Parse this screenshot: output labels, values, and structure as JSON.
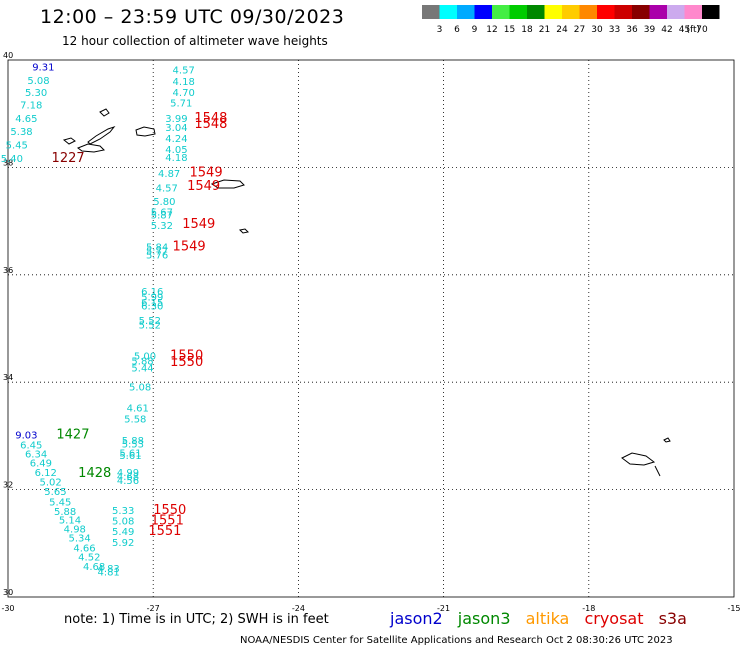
{
  "header": {
    "title": "12:00 – 23:59 UTC 09/30/2023",
    "subtitle": "12 hour collection of altimeter wave heights"
  },
  "legend": {
    "unit": "(ft)",
    "bins": [
      {
        "label": "3",
        "color": "#777777"
      },
      {
        "label": "6",
        "color": "#00ffff"
      },
      {
        "label": "9",
        "color": "#00aaff"
      },
      {
        "label": "12",
        "color": "#0000ff"
      },
      {
        "label": "15",
        "color": "#44ee44"
      },
      {
        "label": "18",
        "color": "#00cc00"
      },
      {
        "label": "21",
        "color": "#008800"
      },
      {
        "label": "24",
        "color": "#ffff00"
      },
      {
        "label": "27",
        "color": "#ffcc00"
      },
      {
        "label": "30",
        "color": "#ff8800"
      },
      {
        "label": "33",
        "color": "#ff0000"
      },
      {
        "label": "36",
        "color": "#cc0000"
      },
      {
        "label": "39",
        "color": "#880000"
      },
      {
        "label": "42",
        "color": "#aa00aa"
      },
      {
        "label": "45",
        "color": "#ccaaee"
      },
      {
        "label": "70",
        "color": "#ff88cc"
      },
      {
        "label": "",
        "color": "#000000"
      }
    ]
  },
  "map": {
    "lat_ticks": [
      "40",
      "38",
      "36",
      "34",
      "32",
      "30"
    ],
    "lon_ticks": [
      "-30",
      "-27",
      "-24",
      "-21",
      "-18",
      "-15"
    ],
    "lon_range": [
      -30,
      -15
    ],
    "lat_range": [
      30,
      40
    ],
    "colors": {
      "cyan": "#11cccc",
      "blue": "#0000cc",
      "red": "#dd0000",
      "darkred": "#880000",
      "green": "#008800"
    },
    "wave_labels": [
      {
        "t": "9.31",
        "lon": -29.5,
        "lat": 39.8,
        "c": "blue"
      },
      {
        "t": "5.08",
        "lon": -29.6,
        "lat": 39.55,
        "c": "cyan"
      },
      {
        "t": "5.30",
        "lon": -29.65,
        "lat": 39.33,
        "c": "cyan"
      },
      {
        "t": "7.18",
        "lon": -29.75,
        "lat": 39.1,
        "c": "cyan"
      },
      {
        "t": "4.65",
        "lon": -29.85,
        "lat": 38.85,
        "c": "cyan"
      },
      {
        "t": "5.38",
        "lon": -29.95,
        "lat": 38.6,
        "c": "cyan"
      },
      {
        "t": "5.45",
        "lon": -30.05,
        "lat": 38.35,
        "c": "cyan"
      },
      {
        "t": "5.40",
        "lon": -30.15,
        "lat": 38.1,
        "c": "cyan"
      },
      {
        "t": "4.57",
        "lon": -26.6,
        "lat": 39.75,
        "c": "cyan"
      },
      {
        "t": "4.18",
        "lon": -26.6,
        "lat": 39.53,
        "c": "cyan"
      },
      {
        "t": "4.70",
        "lon": -26.6,
        "lat": 39.33,
        "c": "cyan"
      },
      {
        "t": "5.71",
        "lon": -26.65,
        "lat": 39.13,
        "c": "cyan"
      },
      {
        "t": "3.99",
        "lon": -26.75,
        "lat": 38.85,
        "c": "cyan"
      },
      {
        "t": "3.04",
        "lon": -26.75,
        "lat": 38.68,
        "c": "cyan"
      },
      {
        "t": "4.24",
        "lon": -26.75,
        "lat": 38.47,
        "c": "cyan"
      },
      {
        "t": "4.05",
        "lon": -26.75,
        "lat": 38.27,
        "c": "cyan"
      },
      {
        "t": "4.18",
        "lon": -26.75,
        "lat": 38.12,
        "c": "cyan"
      },
      {
        "t": "4.87",
        "lon": -26.9,
        "lat": 37.82,
        "c": "cyan"
      },
      {
        "t": "4.57",
        "lon": -26.95,
        "lat": 37.55,
        "c": "cyan"
      },
      {
        "t": "5.80",
        "lon": -27.0,
        "lat": 37.3,
        "c": "cyan"
      },
      {
        "t": "5.67",
        "lon": -27.05,
        "lat": 37.1,
        "c": "cyan"
      },
      {
        "t": "5.87",
        "lon": -27.05,
        "lat": 37.05,
        "c": "cyan"
      },
      {
        "t": "5.32",
        "lon": -27.05,
        "lat": 36.85,
        "c": "cyan"
      },
      {
        "t": "5.84",
        "lon": -27.15,
        "lat": 36.45,
        "c": "cyan"
      },
      {
        "t": "5.77",
        "lon": -27.15,
        "lat": 36.38,
        "c": "cyan"
      },
      {
        "t": "5.76",
        "lon": -27.15,
        "lat": 36.3,
        "c": "cyan"
      },
      {
        "t": "6.16",
        "lon": -27.25,
        "lat": 35.62,
        "c": "cyan"
      },
      {
        "t": "5.99",
        "lon": -27.25,
        "lat": 35.52,
        "c": "cyan"
      },
      {
        "t": "6.15",
        "lon": -27.25,
        "lat": 35.42,
        "c": "cyan"
      },
      {
        "t": "6.30",
        "lon": -27.25,
        "lat": 35.35,
        "c": "cyan"
      },
      {
        "t": "5.52",
        "lon": -27.3,
        "lat": 35.08,
        "c": "cyan"
      },
      {
        "t": "5.52",
        "lon": -27.3,
        "lat": 35.0,
        "c": "cyan"
      },
      {
        "t": "5.00",
        "lon": -27.4,
        "lat": 34.42,
        "c": "cyan"
      },
      {
        "t": "5.88",
        "lon": -27.45,
        "lat": 34.33,
        "c": "cyan"
      },
      {
        "t": "5.44",
        "lon": -27.45,
        "lat": 34.2,
        "c": "cyan"
      },
      {
        "t": "5.08",
        "lon": -27.5,
        "lat": 33.85,
        "c": "cyan"
      },
      {
        "t": "4.61",
        "lon": -27.55,
        "lat": 33.45,
        "c": "cyan"
      },
      {
        "t": "5.58",
        "lon": -27.6,
        "lat": 33.25,
        "c": "cyan"
      },
      {
        "t": "5.88",
        "lon": -27.65,
        "lat": 32.85,
        "c": "cyan"
      },
      {
        "t": "5.53",
        "lon": -27.65,
        "lat": 32.78,
        "c": "cyan"
      },
      {
        "t": "5.61",
        "lon": -27.7,
        "lat": 32.62,
        "c": "cyan"
      },
      {
        "t": "5.61",
        "lon": -27.7,
        "lat": 32.57,
        "c": "cyan"
      },
      {
        "t": "4.99",
        "lon": -27.75,
        "lat": 32.25,
        "c": "cyan"
      },
      {
        "t": "4.68",
        "lon": -27.75,
        "lat": 32.18,
        "c": "cyan"
      },
      {
        "t": "4.56",
        "lon": -27.75,
        "lat": 32.1,
        "c": "cyan"
      },
      {
        "t": "9.03",
        "lon": -29.85,
        "lat": 32.95,
        "c": "blue"
      },
      {
        "t": "6.45",
        "lon": -29.75,
        "lat": 32.77,
        "c": "cyan"
      },
      {
        "t": "6.34",
        "lon": -29.65,
        "lat": 32.6,
        "c": "cyan"
      },
      {
        "t": "6.49",
        "lon": -29.55,
        "lat": 32.43,
        "c": "cyan"
      },
      {
        "t": "6.12",
        "lon": -29.45,
        "lat": 32.25,
        "c": "cyan"
      },
      {
        "t": "5.02",
        "lon": -29.35,
        "lat": 32.08,
        "c": "cyan"
      },
      {
        "t": "5.65",
        "lon": -29.25,
        "lat": 31.9,
        "c": "cyan"
      },
      {
        "t": "5.45",
        "lon": -29.15,
        "lat": 31.7,
        "c": "cyan"
      },
      {
        "t": "5.88",
        "lon": -29.05,
        "lat": 31.53,
        "c": "cyan"
      },
      {
        "t": "5.14",
        "lon": -28.95,
        "lat": 31.37,
        "c": "cyan"
      },
      {
        "t": "4.98",
        "lon": -28.85,
        "lat": 31.2,
        "c": "cyan"
      },
      {
        "t": "5.34",
        "lon": -28.75,
        "lat": 31.03,
        "c": "cyan"
      },
      {
        "t": "4.66",
        "lon": -28.65,
        "lat": 30.85,
        "c": "cyan"
      },
      {
        "t": "4.52",
        "lon": -28.55,
        "lat": 30.68,
        "c": "cyan"
      },
      {
        "t": "4.68",
        "lon": -28.45,
        "lat": 30.5,
        "c": "cyan"
      },
      {
        "t": "4.83",
        "lon": -28.15,
        "lat": 30.47,
        "c": "cyan"
      },
      {
        "t": "4.81",
        "lon": -28.15,
        "lat": 30.4,
        "c": "cyan"
      },
      {
        "t": "5.33",
        "lon": -27.85,
        "lat": 31.55,
        "c": "cyan"
      },
      {
        "t": "5.08",
        "lon": -27.85,
        "lat": 31.35,
        "c": "cyan"
      },
      {
        "t": "5.49",
        "lon": -27.85,
        "lat": 31.15,
        "c": "cyan"
      },
      {
        "t": "5.92",
        "lon": -27.85,
        "lat": 30.95,
        "c": "cyan"
      }
    ],
    "time_labels": [
      {
        "t": "1548",
        "lon": -26.15,
        "lat": 38.85,
        "c": "red"
      },
      {
        "t": "1548",
        "lon": -26.15,
        "lat": 38.73,
        "c": "red"
      },
      {
        "t": "1227",
        "lon": -29.1,
        "lat": 38.1,
        "c": "darkred"
      },
      {
        "t": "1549",
        "lon": -26.25,
        "lat": 37.83,
        "c": "red"
      },
      {
        "t": "1549",
        "lon": -26.3,
        "lat": 37.58,
        "c": "red"
      },
      {
        "t": "1549",
        "lon": -26.4,
        "lat": 36.87,
        "c": "red"
      },
      {
        "t": "1549",
        "lon": -26.6,
        "lat": 36.45,
        "c": "red"
      },
      {
        "t": "1550",
        "lon": -26.65,
        "lat": 34.42,
        "c": "red"
      },
      {
        "t": "1550",
        "lon": -26.65,
        "lat": 34.3,
        "c": "red"
      },
      {
        "t": "1427",
        "lon": -29.0,
        "lat": 32.95,
        "c": "green"
      },
      {
        "t": "1428",
        "lon": -28.55,
        "lat": 32.23,
        "c": "green"
      },
      {
        "t": "1550",
        "lon": -27.0,
        "lat": 31.55,
        "c": "red"
      },
      {
        "t": "1551",
        "lon": -27.05,
        "lat": 31.35,
        "c": "red"
      },
      {
        "t": "1551",
        "lon": -27.1,
        "lat": 31.15,
        "c": "red"
      }
    ]
  },
  "footer": {
    "note": "note:  1) Time is in UTC;  2) SWH is in feet",
    "missions": [
      {
        "label": "jason2",
        "color": "#0000cc"
      },
      {
        "label": "jason3",
        "color": "#008800"
      },
      {
        "label": "altika",
        "color": "#ff9900"
      },
      {
        "label": "cryosat",
        "color": "#dd0000"
      },
      {
        "label": "s3a",
        "color": "#880000"
      }
    ],
    "credit": "NOAA/NESDIS Center for Satellite Applications and Research    Oct  2 08:30:26 UTC 2023"
  }
}
